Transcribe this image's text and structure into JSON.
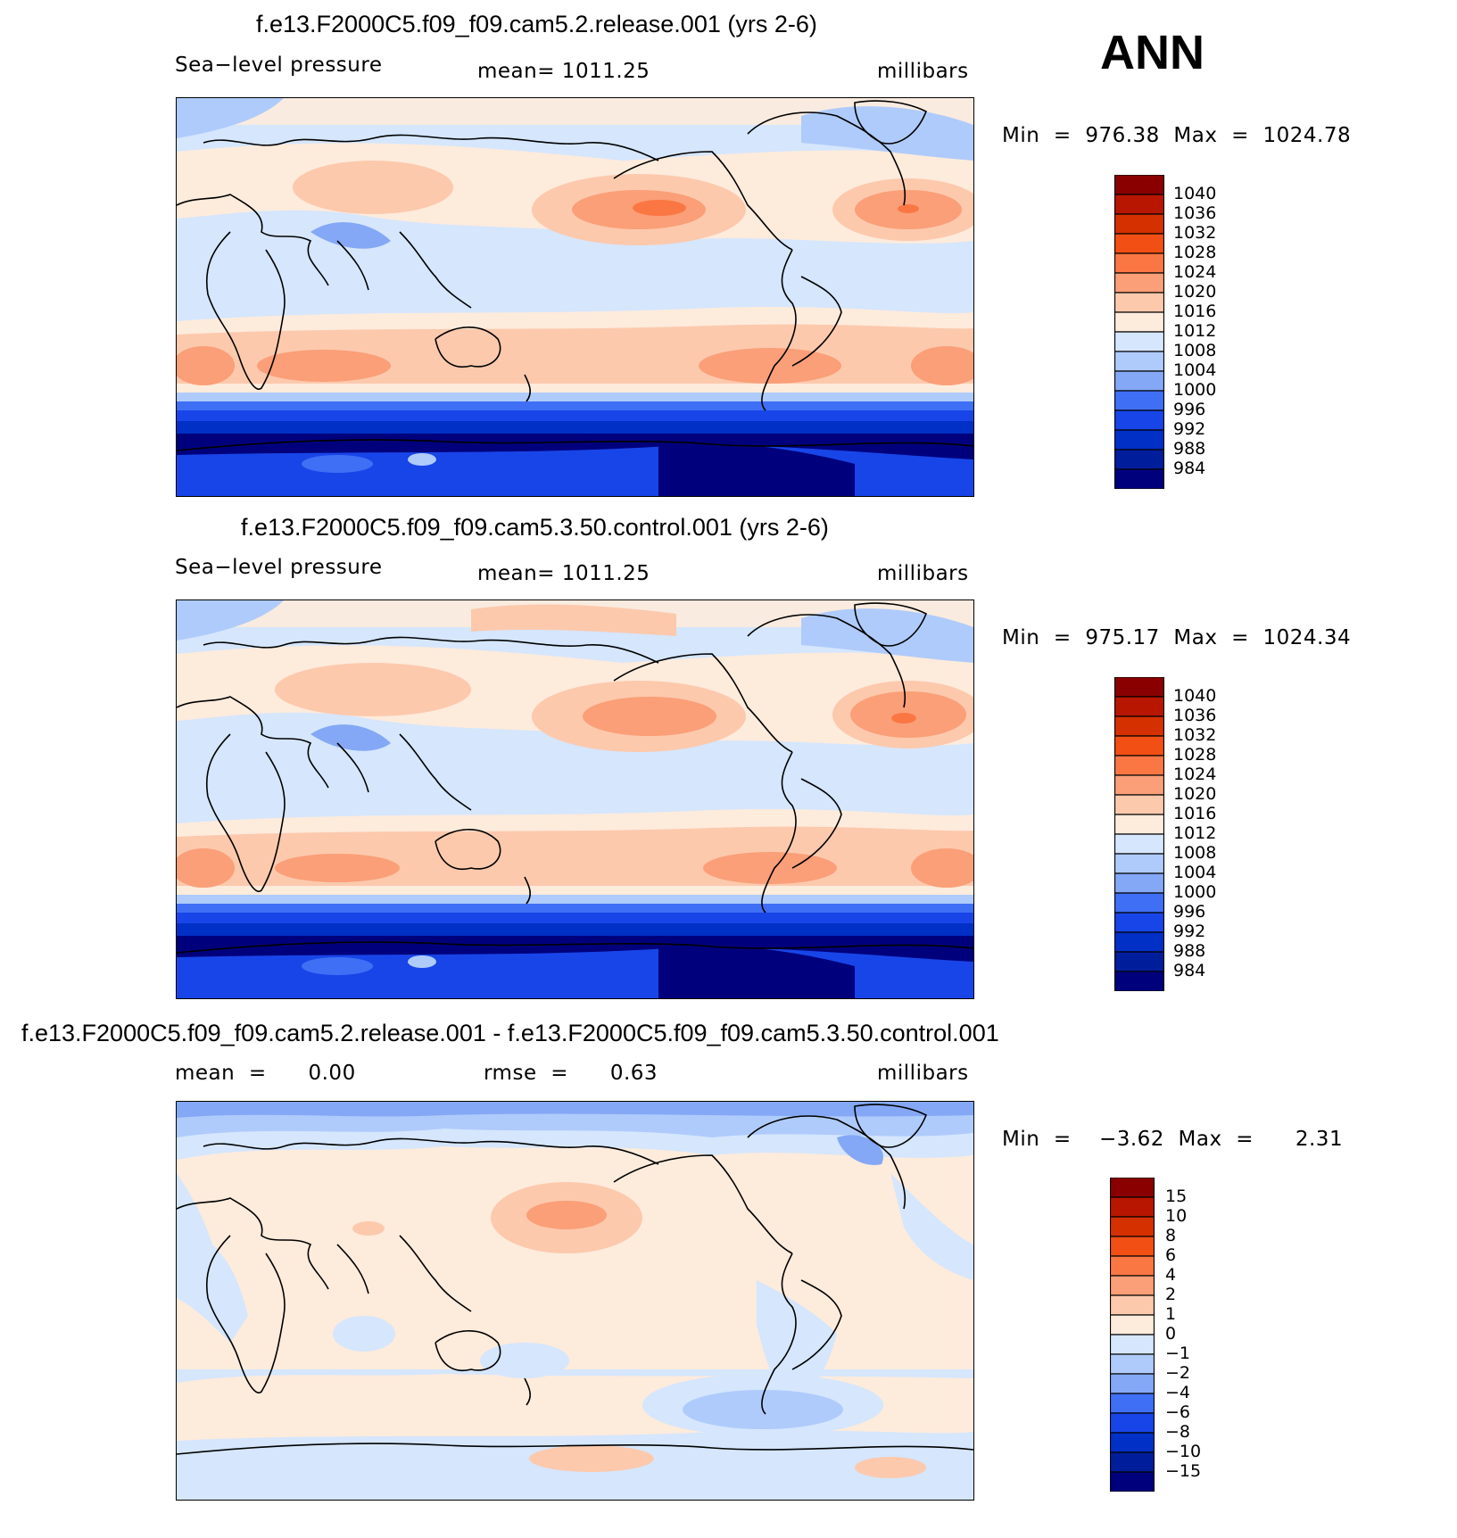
{
  "season": "ANN",
  "colors": {
    "abs": [
      "#00007d",
      "#001e9c",
      "#0030c6",
      "#1845e8",
      "#3f6ff5",
      "#84a8f6",
      "#afcbfb",
      "#d5e6fd",
      "#fdebdc",
      "#fcc9ad",
      "#fa9f78",
      "#fa7744",
      "#f24f14",
      "#d53000",
      "#b81600",
      "#8a0000"
    ],
    "diff": [
      "#00007d",
      "#001e9c",
      "#0030c6",
      "#1845e8",
      "#3f6ff5",
      "#84a8f6",
      "#afcbfb",
      "#d5e6fd",
      "#fdebdc",
      "#fcc9ad",
      "#fa9f78",
      "#fa7744",
      "#f24f14",
      "#d53000",
      "#b81600",
      "#8a0000"
    ]
  },
  "panels": [
    {
      "title": "f.e13.F2000C5.f09_f09.cam5.2.release.001 (yrs 2-6)",
      "left": "Sea−level pressure",
      "center": "mean=  1011.25",
      "units": "millibars",
      "minmax": "Min  =  976.38  Max  =  1024.78",
      "levels": [
        "1040",
        "1036",
        "1032",
        "1028",
        "1024",
        "1020",
        "1016",
        "1012",
        "1008",
        "1004",
        "1000",
        "996",
        "992",
        "988",
        "984"
      ],
      "stats": {
        "min": 976.38,
        "max": 1024.78,
        "mean": 1011.25
      }
    },
    {
      "title": "f.e13.F2000C5.f09_f09.cam5.3.50.control.001 (yrs 2-6)",
      "left": "Sea−level pressure",
      "center": "mean=  1011.25",
      "units": "millibars",
      "minmax": "Min  =  975.17  Max  =  1024.34",
      "levels": [
        "1040",
        "1036",
        "1032",
        "1028",
        "1024",
        "1020",
        "1016",
        "1012",
        "1008",
        "1004",
        "1000",
        "996",
        "992",
        "988",
        "984"
      ],
      "stats": {
        "min": 975.17,
        "max": 1024.34,
        "mean": 1011.25
      }
    },
    {
      "title": "f.e13.F2000C5.f09_f09.cam5.2.release.001 - f.e13.F2000C5.f09_f09.cam5.3.50.control.001",
      "left": "mean  =      0.00",
      "center": "rmse  =      0.63",
      "units": "millibars",
      "minmax": "Min  =    −3.62  Max  =      2.31",
      "levels": [
        "15",
        "10",
        "8",
        "6",
        "4",
        "2",
        "1",
        "0",
        "−1",
        "−2",
        "−4",
        "−6",
        "−8",
        "−10",
        "−15"
      ],
      "stats": {
        "min": -3.62,
        "max": 2.31,
        "mean": 0.0,
        "rmse": 0.63
      }
    }
  ]
}
